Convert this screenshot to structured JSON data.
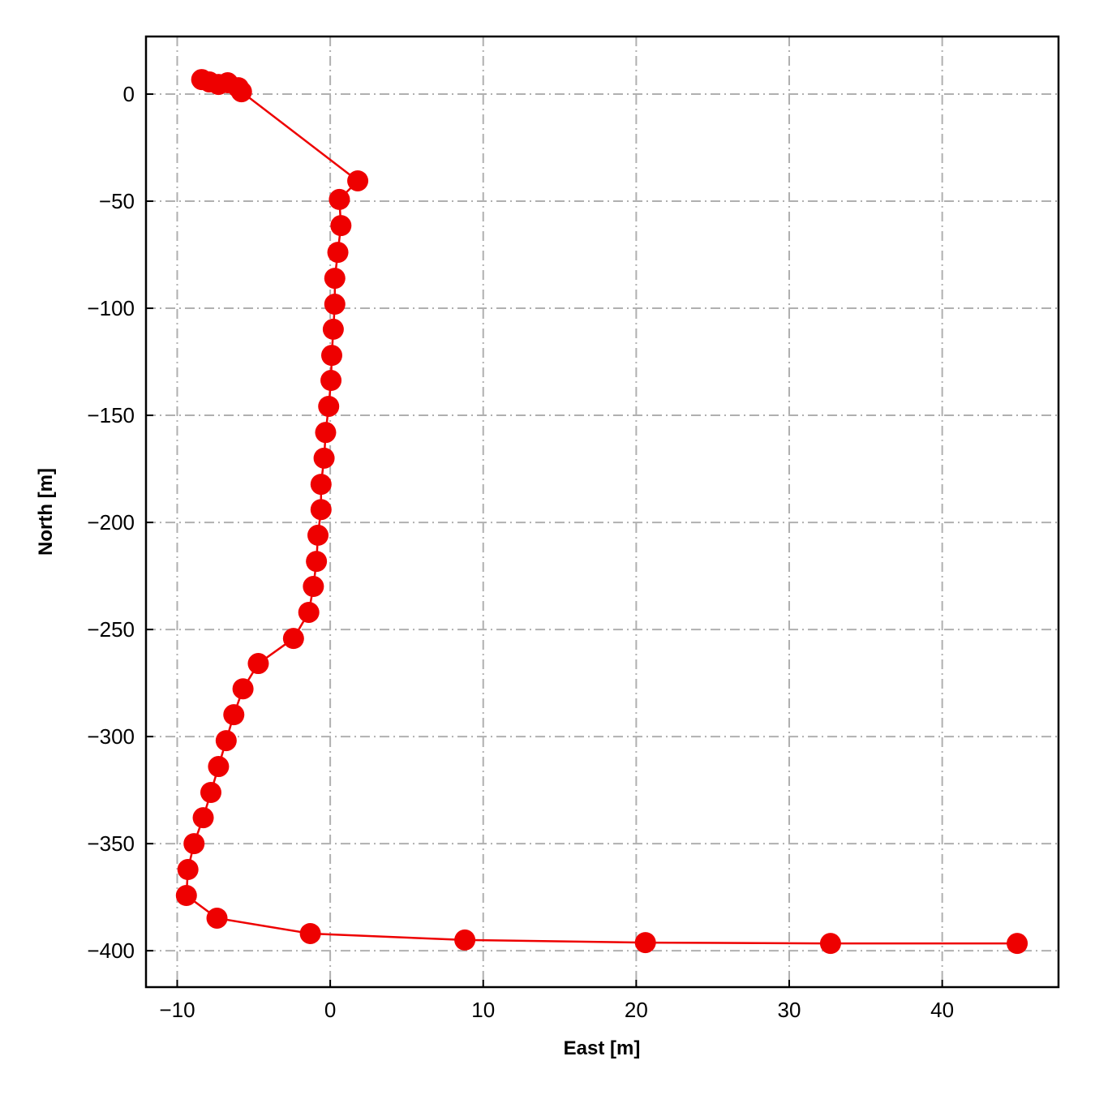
{
  "chart_data": {
    "type": "line",
    "xlabel": "East [m]",
    "ylabel": "North [m]",
    "color": "#ee0000",
    "marker": "circle",
    "grid": true,
    "xlim": [
      -12.04,
      47.6
    ],
    "ylim": [
      -417,
      26.9
    ],
    "xticks": [
      {
        "value": -10,
        "label": "−10"
      },
      0,
      10,
      20,
      30,
      40
    ],
    "yticks": [
      0,
      {
        "value": -50,
        "label": "−50"
      },
      {
        "value": -100,
        "label": "−100"
      },
      {
        "value": -150,
        "label": "−150"
      },
      {
        "value": -200,
        "label": "−200"
      },
      {
        "value": -250,
        "label": "−250"
      },
      {
        "value": -300,
        "label": "−300"
      },
      {
        "value": -350,
        "label": "−350"
      },
      {
        "value": -400,
        "label": "−400"
      }
    ],
    "x": [
      -8.4,
      -7.9,
      -7.3,
      -6.7,
      -6.0,
      -5.8,
      1.8,
      0.6,
      0.7,
      0.5,
      0.3,
      0.3,
      0.2,
      0.1,
      0.05,
      -0.1,
      -0.3,
      -0.4,
      -0.6,
      -0.6,
      -0.8,
      -0.9,
      -1.1,
      -1.4,
      -2.4,
      -4.7,
      -5.7,
      -6.3,
      -6.8,
      -7.3,
      -7.8,
      -8.3,
      -8.9,
      -9.3,
      -9.4,
      -7.4,
      -1.3,
      8.8,
      20.6,
      32.7,
      44.9
    ],
    "y": [
      6.8,
      5.7,
      4.5,
      5.3,
      3.0,
      1.1,
      -40.5,
      -49.2,
      -61.4,
      -73.9,
      -86.0,
      -98.1,
      -109.8,
      -122.0,
      -133.7,
      -145.8,
      -158.0,
      -170.0,
      -182.2,
      -194.0,
      -206.0,
      -218.2,
      -229.9,
      -242.0,
      -254.2,
      -265.9,
      -277.7,
      -289.8,
      -301.9,
      -314.0,
      -326.1,
      -337.9,
      -350.0,
      -362.1,
      -374.2,
      -384.8,
      -392.0,
      -395.0,
      -396.2,
      -396.6,
      -396.6
    ]
  }
}
